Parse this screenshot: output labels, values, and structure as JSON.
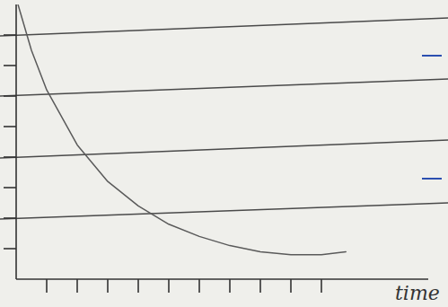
{
  "chart_data": {
    "type": "line",
    "x_label": "time",
    "x": [
      0.06,
      0.5,
      1,
      2,
      3,
      4,
      5,
      6,
      7,
      8,
      9,
      10,
      10.8
    ],
    "values": [
      9.0,
      7.5,
      6.2,
      4.4,
      3.2,
      2.4,
      1.8,
      1.4,
      1.1,
      0.9,
      0.8,
      0.8,
      0.9
    ],
    "xlim": [
      0,
      13.5
    ],
    "ylim": [
      0,
      9
    ],
    "xticks": [
      1,
      2,
      3,
      4,
      5,
      6,
      7,
      8,
      9,
      10
    ],
    "yticks": [
      1,
      2,
      3,
      4,
      5,
      6,
      7,
      8
    ],
    "tick_labels": false,
    "grid": false,
    "color": "#5a5a5a"
  }
}
